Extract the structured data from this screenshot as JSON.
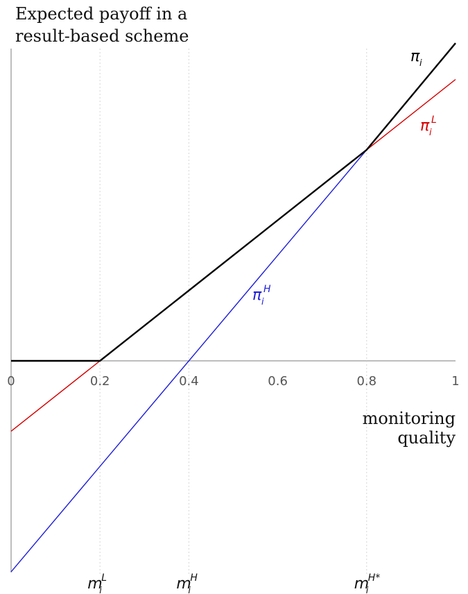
{
  "chart_data": {
    "type": "line",
    "title_lines": [
      "Expected payoff in a",
      "result-based scheme"
    ],
    "xlabel_lines": [
      "monitoring",
      "quality"
    ],
    "xlim": [
      0,
      1
    ],
    "ylim": [
      -1.0,
      1.45
    ],
    "x_ticks": [
      "0",
      "0.2",
      "0.4",
      "0.6",
      "0.8",
      "1"
    ],
    "x_tick_values": [
      0,
      0.2,
      0.4,
      0.6,
      0.8,
      1
    ],
    "grid": false,
    "series": [
      {
        "name": "π_i^L",
        "color": "#d40000",
        "x": [
          0,
          0.2,
          0.8,
          1
        ],
        "y": [
          -0.31,
          0,
          0.93,
          1.24
        ]
      },
      {
        "name": "π_i^H",
        "color": "#1f1fd6",
        "x": [
          0,
          0.4,
          0.8,
          1
        ],
        "y": [
          -0.93,
          0,
          0.93,
          1.4
        ]
      },
      {
        "name": "π_i",
        "color": "#000000",
        "x": [
          0,
          0.2,
          0.8,
          1
        ],
        "y": [
          0,
          0,
          0.93,
          1.4
        ]
      }
    ],
    "curve_labels": [
      {
        "base": "π",
        "sub": "i",
        "sup": "",
        "color": "#000000"
      },
      {
        "base": "π",
        "sub": "i",
        "sup": "L",
        "color": "#d40000"
      },
      {
        "base": "π",
        "sub": "i",
        "sup": "H",
        "color": "#1f1fd6"
      }
    ],
    "thresholds": [
      {
        "base": "m",
        "sub": "i",
        "sup": "L",
        "x": 0.2
      },
      {
        "base": "m",
        "sub": "i",
        "sup": "H",
        "x": 0.4
      },
      {
        "base": "m",
        "sub": "i",
        "sup": "H*",
        "x": 0.8
      }
    ]
  }
}
